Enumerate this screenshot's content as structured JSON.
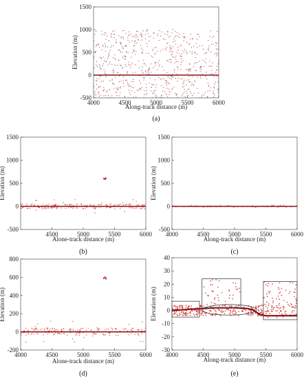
{
  "chart_data": [
    {
      "id": "a",
      "type": "scatter",
      "caption": "(a)",
      "xlabel": "Along-track distance (m)",
      "ylabel": "Elevation (m)",
      "xlim": [
        4000,
        6000
      ],
      "ylim": [
        -500,
        1500
      ],
      "xticks": [
        4000,
        4500,
        5000,
        5500,
        6000
      ],
      "yticks": [
        -500,
        0,
        500,
        1000,
        1500
      ],
      "grid": false,
      "series": [
        {
          "values": [
            [
              4000,
              0
            ],
            [
              6000,
              0
            ]
          ]
        }
      ],
      "noise": {
        "x": [
          4000,
          6000
        ],
        "y": [
          -500,
          1000
        ],
        "count": 700
      }
    },
    {
      "id": "b",
      "type": "scatter",
      "caption": "(b)",
      "xlabel": "Alone-track distance (m)",
      "ylabel": "Elevation (m)",
      "xlim": [
        4000,
        6000
      ],
      "ylim": [
        -500,
        1500
      ],
      "xticks": [
        4500,
        5000,
        5500,
        6000
      ],
      "yticks": [
        -500,
        0,
        500,
        1000,
        1500
      ],
      "grid": false,
      "series": [
        {
          "values": [
            [
              4000,
              0
            ],
            [
              6000,
              0
            ]
          ]
        },
        {
          "values": [
            [
              5330,
              600
            ],
            [
              5350,
              590
            ],
            [
              5360,
              610
            ]
          ]
        }
      ],
      "noise": {
        "x": [
          4000,
          6000
        ],
        "y": [
          -150,
          150
        ],
        "count": 220
      }
    },
    {
      "id": "c",
      "type": "scatter",
      "caption": "(c)",
      "xlabel": "Along-track distance (m)",
      "ylabel": "Elevation (m)",
      "xlim": [
        4000,
        6000
      ],
      "ylim": [
        -500,
        1500
      ],
      "xticks": [
        4000,
        4500,
        5000,
        5500,
        6000
      ],
      "yticks": [
        -500,
        0,
        500,
        1000,
        1500
      ],
      "grid": false,
      "series": [
        {
          "values": [
            [
              4000,
              0
            ],
            [
              6000,
              0
            ]
          ]
        }
      ],
      "noise": {
        "x": [
          4000,
          6000
        ],
        "y": [
          -20,
          30
        ],
        "count": 150
      }
    },
    {
      "id": "d",
      "type": "scatter",
      "caption": "(d)",
      "xlabel": "Alone-track distance (m)",
      "ylabel": "Elevation (m)",
      "xlim": [
        4000,
        6000
      ],
      "ylim": [
        -200,
        800
      ],
      "xticks": [
        4000,
        4500,
        5000,
        5500,
        6000
      ],
      "yticks": [
        -200,
        0,
        200,
        400,
        600,
        800
      ],
      "grid": false,
      "series": [
        {
          "values": [
            [
              4000,
              0
            ],
            [
              6000,
              0
            ]
          ]
        },
        {
          "values": [
            [
              5330,
              590
            ],
            [
              5350,
              600
            ],
            [
              5365,
              585
            ]
          ]
        }
      ],
      "noise": {
        "x": [
          4000,
          6000
        ],
        "y": [
          -120,
          120
        ],
        "count": 200
      }
    },
    {
      "id": "e",
      "type": "scatter",
      "caption": "(e)",
      "xlabel": "Along-track distance (m)",
      "ylabel": "Elevation (m)",
      "xlim": [
        4000,
        6000
      ],
      "ylim": [
        -30,
        40
      ],
      "xticks": [
        4000,
        4500,
        5000,
        5500,
        6000
      ],
      "yticks": [
        -30,
        -20,
        -10,
        0,
        10,
        20,
        30,
        40
      ],
      "grid": false,
      "series": [
        {
          "values": [
            [
              4000,
              0
            ],
            [
              4300,
              1
            ],
            [
              4700,
              2
            ],
            [
              5000,
              2
            ],
            [
              5200,
              1.5
            ],
            [
              5300,
              0.5
            ],
            [
              5400,
              -3
            ],
            [
              5500,
              -4
            ],
            [
              6000,
              -4
            ]
          ]
        }
      ],
      "boxes": [
        {
          "x": [
            4000,
            4440
          ],
          "y": [
            -5,
            7
          ]
        },
        {
          "x": [
            4480,
            5100
          ],
          "y": [
            2,
            24
          ]
        },
        {
          "x": [
            5460,
            6000
          ],
          "y": [
            -7,
            22
          ]
        }
      ],
      "ellipse": {
        "cx": 4920,
        "cy": 0.5,
        "rx": 430,
        "ry": 4
      },
      "noise": {
        "x": [
          4000,
          6000
        ],
        "y": [
          -10,
          25
        ],
        "count": 450
      }
    }
  ]
}
